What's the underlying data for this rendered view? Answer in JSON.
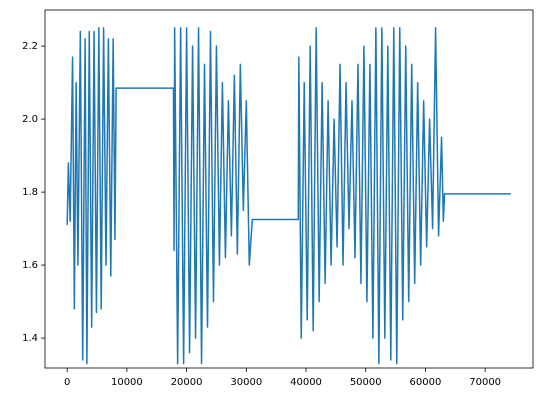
{
  "chart_data": {
    "type": "line",
    "x": [
      0,
      200,
      500,
      900,
      1200,
      1500,
      1800,
      2200,
      2600,
      3000,
      3300,
      3700,
      4100,
      4500,
      4900,
      5300,
      5700,
      6100,
      6500,
      6900,
      7300,
      7700,
      8000,
      8200,
      17800,
      17900,
      18000,
      18500,
      19000,
      19500,
      20000,
      20500,
      21000,
      21500,
      22000,
      22500,
      23000,
      23500,
      24000,
      24500,
      25000,
      25500,
      26000,
      26500,
      27000,
      27500,
      28000,
      28500,
      29000,
      29500,
      30000,
      30500,
      31000,
      38700,
      38800,
      39200,
      39700,
      40200,
      40700,
      41200,
      41700,
      42200,
      42700,
      43200,
      43700,
      44200,
      44700,
      45200,
      45700,
      46200,
      46700,
      47200,
      47700,
      48200,
      48700,
      49200,
      49700,
      50200,
      50700,
      51200,
      51700,
      52200,
      52700,
      53200,
      53700,
      54200,
      54700,
      55200,
      55700,
      56200,
      56700,
      57200,
      57700,
      58200,
      58700,
      59200,
      59700,
      60200,
      60700,
      61200,
      61700,
      62200,
      62700,
      63000,
      63200,
      74300
    ],
    "series": [
      {
        "color": "#1f77b4",
        "values": [
          1.71,
          1.88,
          1.72,
          2.17,
          1.48,
          2.1,
          1.6,
          2.24,
          1.34,
          2.22,
          1.33,
          2.24,
          1.43,
          2.24,
          1.47,
          2.25,
          1.48,
          2.25,
          1.6,
          2.22,
          1.57,
          2.22,
          1.67,
          2.085,
          2.085,
          1.64,
          2.25,
          1.33,
          2.25,
          1.33,
          2.25,
          1.36,
          2.2,
          1.4,
          2.25,
          1.33,
          2.15,
          1.43,
          2.24,
          1.5,
          2.2,
          1.6,
          2.1,
          1.62,
          2.05,
          1.68,
          2.12,
          1.63,
          2.15,
          1.75,
          2.05,
          1.6,
          1.725,
          1.725,
          2.17,
          1.4,
          2.1,
          1.45,
          2.2,
          1.42,
          2.25,
          1.5,
          2.1,
          1.55,
          2.05,
          1.6,
          2.0,
          1.65,
          2.15,
          1.6,
          2.1,
          1.7,
          2.05,
          1.62,
          2.15,
          1.55,
          2.2,
          1.5,
          2.15,
          1.4,
          2.25,
          1.33,
          2.25,
          1.4,
          2.2,
          1.34,
          2.25,
          1.33,
          2.25,
          1.45,
          2.2,
          1.5,
          2.15,
          1.55,
          2.1,
          1.6,
          2.05,
          1.65,
          2.0,
          1.7,
          2.25,
          1.68,
          1.95,
          1.72,
          1.795,
          1.795
        ]
      }
    ],
    "xlim": [
      -3715,
      78015
    ],
    "ylim": [
      1.318,
      2.299
    ],
    "xticks": [
      0,
      10000,
      20000,
      30000,
      40000,
      50000,
      60000,
      70000
    ],
    "yticks": [
      1.4,
      1.6,
      1.8,
      {
        "value": 2,
        "label": "2.0"
      },
      2.2
    ]
  }
}
